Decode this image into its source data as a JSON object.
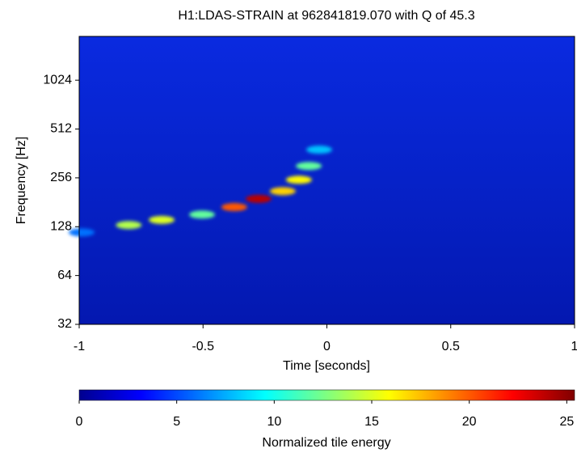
{
  "chart_data": {
    "type": "spectrogram",
    "title": "H1:LDAS-STRAIN at 962841819.070 with Q of 45.3",
    "x_label": "Time [seconds]",
    "y_label": "Frequency [Hz]",
    "xlim": [
      -1,
      1
    ],
    "xticks": [
      -1,
      -0.5,
      0,
      0.5,
      1
    ],
    "ylim": [
      32,
      1907
    ],
    "yticks": [
      32,
      64,
      128,
      256,
      512,
      1024
    ],
    "y_log_scale": true,
    "colorbar": {
      "label": "Normalized tile energy",
      "clim": [
        0,
        25.4
      ],
      "ticks": [
        0,
        5,
        10,
        15,
        20,
        25
      ],
      "colormap": "jet"
    },
    "track": {
      "time": [
        -0.99,
        -0.8,
        -0.667,
        -0.504,
        -0.374,
        -0.276,
        -0.178,
        -0.113,
        -0.073,
        -0.031
      ],
      "frequency": [
        118,
        131,
        141,
        152,
        169,
        190,
        212,
        249,
        303,
        382
      ],
      "energy": [
        6,
        14,
        15,
        12,
        20,
        24,
        17,
        16,
        12,
        8
      ]
    }
  }
}
